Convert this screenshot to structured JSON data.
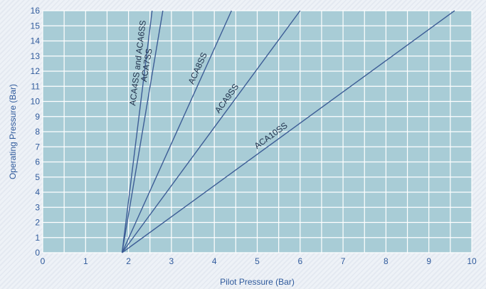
{
  "chart_data": {
    "type": "line",
    "title": "",
    "xlabel": "Pilot Pressure (Bar)",
    "ylabel": "Operating Pressure (Bar)",
    "xlim": [
      0,
      10
    ],
    "ylim": [
      0,
      16
    ],
    "xticks": [
      "0",
      "1",
      "2",
      "3",
      "4",
      "5",
      "6",
      "7",
      "8",
      "9",
      "10"
    ],
    "yticks": [
      "0",
      "1",
      "2",
      "3",
      "4",
      "5",
      "6",
      "7",
      "8",
      "9",
      "10",
      "11",
      "12",
      "13",
      "14",
      "15",
      "16"
    ],
    "grid": true,
    "colors": {
      "plot_bg": "#a8ccd6",
      "grid": "#ffffff",
      "line": "#3d5d96",
      "text": "#2f5a9c",
      "label": "#1e2f4a"
    },
    "series": [
      {
        "name": "ACA4SS and ACA6SS",
        "x": [
          1.85,
          2.55
        ],
        "y": [
          0,
          16
        ]
      },
      {
        "name": "ACA7SS",
        "x": [
          1.85,
          2.8
        ],
        "y": [
          0,
          16
        ]
      },
      {
        "name": "ACA8SS",
        "x": [
          1.85,
          4.4
        ],
        "y": [
          0,
          16
        ]
      },
      {
        "name": "ACA9SS",
        "x": [
          1.85,
          6.0
        ],
        "y": [
          0,
          16
        ]
      },
      {
        "name": "ACA10SS",
        "x": [
          1.85,
          9.6
        ],
        "y": [
          0,
          16
        ]
      }
    ]
  }
}
